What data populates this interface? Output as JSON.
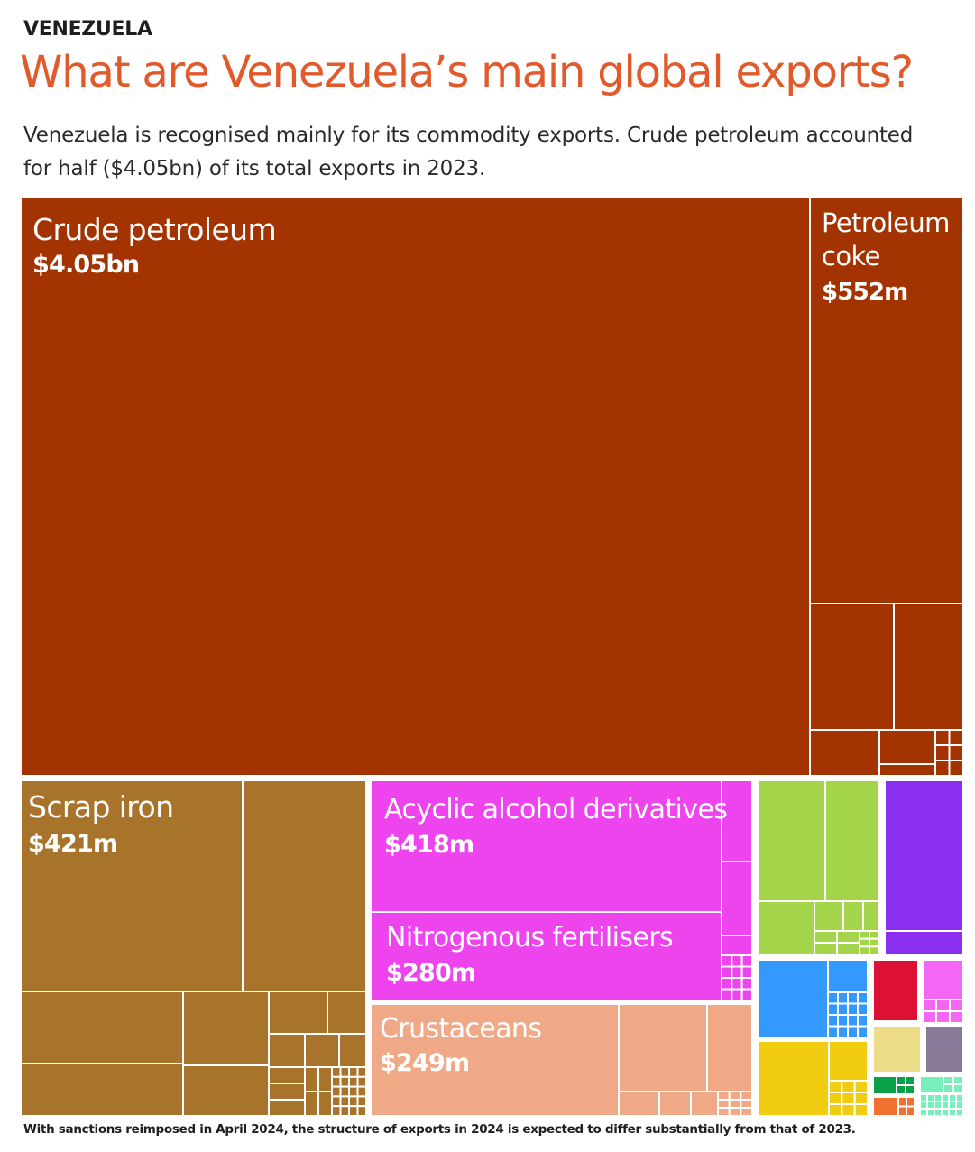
{
  "header": {
    "kicker": "VENEZUELA",
    "title": "What are Venezuela’s main global exports?",
    "subtitle": "Venezuela is recognised mainly for its commodity exports. Crude petroleum accounted for half ($4.05bn) of its total exports in 2023."
  },
  "footnote": "With sanctions reimposed in April 2024, the structure of exports in 2024 is expected to differ substantially from that of 2023.",
  "colors": {
    "petroleum": "#a33300",
    "scrap": "#a8742b",
    "chemicals": "#ee44ee",
    "crustaceans": "#f0a986",
    "green": "#a3d44a",
    "purple": "#8a2ef0",
    "blue": "#3399ff",
    "yellow": "#f2cc10",
    "red": "#dd1133",
    "pink": "#f566f5",
    "tan": "#ecdc88",
    "mauve": "#8a7a9a",
    "darkgreen": "#0aa04a",
    "orange": "#f07030",
    "mint": "#77eebb"
  },
  "chart_data": {
    "type": "treemap",
    "title": "What are Venezuela’s main global exports?",
    "unit": "USD",
    "year": 2023,
    "labeled_items": [
      {
        "name": "Crude petroleum",
        "value_label": "$4.05bn",
        "value": 4050000000
      },
      {
        "name": "Petroleum coke",
        "value_label": "$552m",
        "value": 552000000
      },
      {
        "name": "Scrap iron",
        "value_label": "$421m",
        "value": 421000000
      },
      {
        "name": "Acyclic alcohol derivatives",
        "value_label": "$418m",
        "value": 418000000
      },
      {
        "name": "Nitrogenous fertilisers",
        "value_label": "$280m",
        "value": 280000000
      },
      {
        "name": "Crustaceans",
        "value_label": "$249m",
        "value": 249000000
      }
    ]
  }
}
